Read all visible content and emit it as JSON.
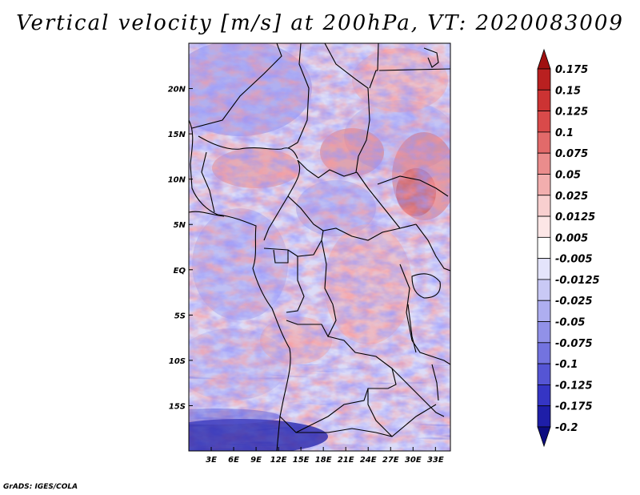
{
  "title": "Vertical velocity [m/s] at 200hPa, VT: 2020083009",
  "credit": "GrADS: IGES/COLA",
  "chart_data": {
    "type": "heatmap",
    "variable": "Vertical velocity",
    "units": "m/s",
    "level": "200hPa",
    "valid_time": "2020083009",
    "lon_range": [
      0,
      35
    ],
    "lat_range": [
      -20,
      25
    ],
    "x_ticks": [
      {
        "value": 3,
        "label": "3E"
      },
      {
        "value": 6,
        "label": "6E"
      },
      {
        "value": 9,
        "label": "9E"
      },
      {
        "value": 12,
        "label": "12E"
      },
      {
        "value": 15,
        "label": "15E"
      },
      {
        "value": 18,
        "label": "18E"
      },
      {
        "value": 21,
        "label": "21E"
      },
      {
        "value": 24,
        "label": "24E"
      },
      {
        "value": 27,
        "label": "27E"
      },
      {
        "value": 30,
        "label": "30E"
      },
      {
        "value": 33,
        "label": "33E"
      }
    ],
    "y_ticks": [
      {
        "value": 20,
        "label": "20N"
      },
      {
        "value": 15,
        "label": "15N"
      },
      {
        "value": 10,
        "label": "10N"
      },
      {
        "value": 5,
        "label": "5N"
      },
      {
        "value": 0,
        "label": "EQ"
      },
      {
        "value": -5,
        "label": "5S"
      },
      {
        "value": -10,
        "label": "10S"
      },
      {
        "value": -15,
        "label": "15S"
      }
    ],
    "colorbar": {
      "labels": [
        "0.175",
        "0.15",
        "0.125",
        "0.1",
        "0.075",
        "0.05",
        "0.025",
        "0.0125",
        "0.005",
        "-0.005",
        "-0.0125",
        "-0.025",
        "-0.05",
        "-0.075",
        "-0.1",
        "-0.125",
        "-0.175",
        "-0.2"
      ],
      "colors": [
        "#a01010",
        "#b92020",
        "#cc3333",
        "#d94a4a",
        "#e26a6a",
        "#ea8c8c",
        "#f2aeae",
        "#f8cfcf",
        "#fce6e6",
        "#ffffff",
        "#e4e4fb",
        "#c9c9f5",
        "#aeaef0",
        "#9191e8",
        "#7373df",
        "#5555d4",
        "#3535c4",
        "#1e1ea8",
        "#0c0c80"
      ]
    },
    "features": {
      "high_ascent_regions": [
        "Sudan/Ethiopia highlands near 10-15N 22-33E",
        "Nigeria/Cameroon near 10-12N 7-13E"
      ],
      "strong_descent_regions": [
        "Southern Atlantic near 17-20S 0-15E"
      ]
    }
  }
}
